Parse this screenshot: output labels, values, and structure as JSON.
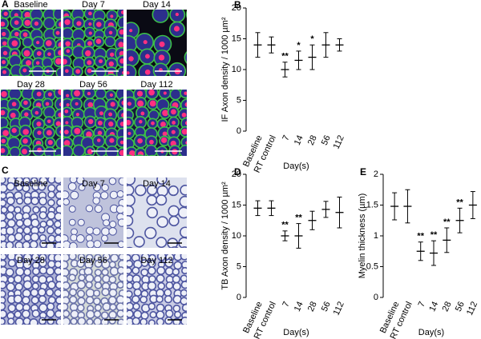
{
  "panel_labels": [
    "A",
    "B",
    "C",
    "D",
    "E"
  ],
  "micrographs": {
    "A": [
      "Baseline",
      "Day 7",
      "Day 14",
      "Day 28",
      "Day 56",
      "Day 112"
    ],
    "C": [
      "Baseline",
      "Day 7",
      "Day 14",
      "Day 28",
      "Day 56",
      "Day 112"
    ]
  },
  "chart_data": [
    {
      "type": "errorbar",
      "ylabel": "IF Axon density / 1000 µm²",
      "xlabel": "Day(s)",
      "categories": [
        "Baseline",
        "RT control",
        "7",
        "14",
        "28",
        "56",
        "112"
      ],
      "values": [
        14,
        14,
        10,
        11.5,
        12,
        14,
        14
      ],
      "errors": [
        2,
        1.3,
        1.2,
        1.5,
        2,
        2,
        1
      ],
      "significance": [
        null,
        null,
        "**",
        "*",
        "*",
        null,
        null
      ],
      "ylim": [
        0,
        20
      ],
      "yticks": [
        0,
        5,
        10,
        15,
        20
      ],
      "color": "#000000"
    },
    {
      "type": "errorbar",
      "ylabel": "TB Axon density / 1000 µm²",
      "xlabel": "Day(s)",
      "categories": [
        "Baseline",
        "RT control",
        "7",
        "14",
        "28",
        "56",
        "112"
      ],
      "values": [
        14.5,
        14.5,
        10,
        10,
        12.5,
        14.3,
        13.8
      ],
      "errors": [
        1.2,
        1.2,
        0.8,
        2,
        1.5,
        1.3,
        2.5
      ],
      "significance": [
        null,
        null,
        "**",
        "**",
        null,
        null,
        null
      ],
      "ylim": [
        0,
        20
      ],
      "yticks": [
        0,
        5,
        10,
        15,
        20
      ],
      "color": "#000000"
    },
    {
      "type": "errorbar",
      "ylabel": "Myelin thickness (µm)",
      "xlabel": "Day(s)",
      "categories": [
        "Baseline",
        "RT control",
        "7",
        "14",
        "28",
        "56",
        "112"
      ],
      "values": [
        1.48,
        1.48,
        0.75,
        0.72,
        0.93,
        1.25,
        1.5
      ],
      "errors": [
        0.22,
        0.27,
        0.15,
        0.2,
        0.2,
        0.2,
        0.22
      ],
      "significance": [
        null,
        null,
        "**",
        "**",
        "**",
        "**",
        null
      ],
      "ylim": [
        0,
        2
      ],
      "yticks": [
        0,
        0.5,
        1,
        1.5,
        2
      ],
      "color": "#000000"
    }
  ]
}
